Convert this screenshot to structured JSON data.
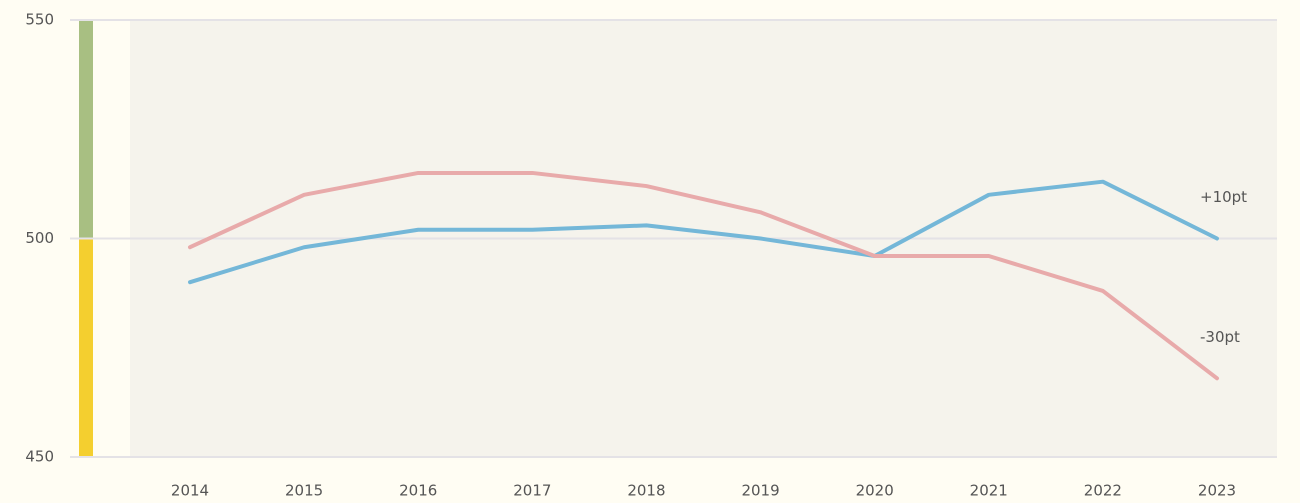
{
  "chart_data": {
    "type": "line",
    "categories": [
      "2014",
      "2015",
      "2016",
      "2017",
      "2018",
      "2019",
      "2020",
      "2021",
      "2022",
      "2023"
    ],
    "series": [
      {
        "color": "#74b7d8",
        "values": [
          490,
          498,
          502,
          502,
          503,
          500,
          496,
          510,
          513,
          500
        ]
      },
      {
        "color": "#e8aaaa",
        "values": [
          498,
          510,
          515,
          515,
          512,
          506,
          496,
          496,
          488,
          468
        ]
      }
    ],
    "annotations": [
      "+10pt",
      "-30pt"
    ],
    "bands": [
      {
        "from": 500,
        "to": 550,
        "color": "#a8bf82"
      },
      {
        "from": 450,
        "to": 500,
        "color": "#f4cf2f"
      }
    ],
    "ylim": [
      450,
      550
    ],
    "yticks": [
      450,
      500,
      550
    ],
    "grid": true
  }
}
